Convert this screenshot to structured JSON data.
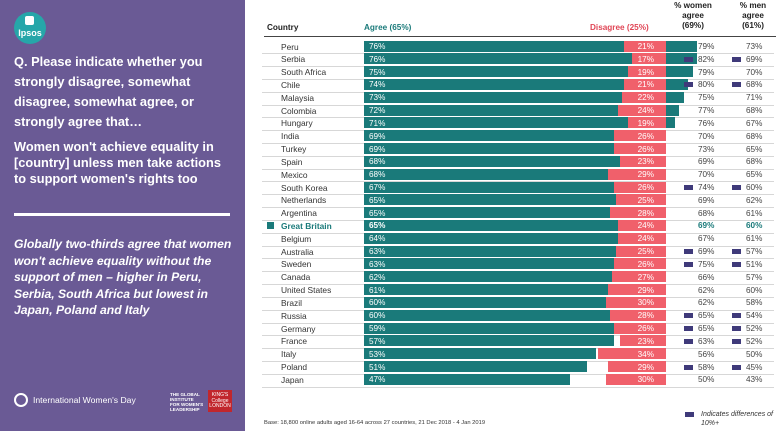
{
  "brand": {
    "logo": "Ipsos"
  },
  "question": "Q. Please indicate whether you strongly disagree, somewhat disagree, somewhat agree, or strongly agree that…",
  "statement": "Women won't achieve equality in [country] unless men take actions to support women's rights too",
  "summary": "Globally two-thirds agree that women won't achieve equality without the support of men – higher in Peru, Serbia, South Africa but lowest in Japan, Poland and Italy",
  "footer": {
    "iwd": "International Women's Day",
    "gi": "THE GLOBAL INSTITUTE FOR WOMEN'S LEADERSHIP",
    "kings": "KING'S College LONDON",
    "base": "Base: 18,800 online adults aged 16-64 across 27 countries,  21 Dec 2018 - 4 Jan  2019",
    "legend": "Indicates differences of 10%+"
  },
  "colors": {
    "agree": "#1a7a7a",
    "disagree": "#f0606b",
    "panel": "#6a5a95",
    "marker": "#3f3a7a"
  },
  "chart_data": {
    "type": "bar",
    "columns": {
      "country": "Country",
      "agree": "Agree (65%)",
      "disagree": "Disagree  (25%)",
      "women_line1": "% women",
      "women_line2": "agree",
      "women_line3": "(69%)",
      "men_line1": "% men",
      "men_line2": "agree",
      "men_line3": "(61%)"
    },
    "highlight": "Great Britain",
    "rows": [
      {
        "country": "Peru",
        "agree": 76,
        "disagree": 21,
        "women": "79%",
        "men": "73%",
        "mw": false,
        "mm": false
      },
      {
        "country": "Serbia",
        "agree": 76,
        "disagree": 17,
        "women": "82%",
        "men": "69%",
        "mw": true,
        "mm": true
      },
      {
        "country": "South Africa",
        "agree": 75,
        "disagree": 19,
        "women": "79%",
        "men": "70%",
        "mw": false,
        "mm": false
      },
      {
        "country": "Chile",
        "agree": 74,
        "disagree": 21,
        "women": "80%",
        "men": "68%",
        "mw": true,
        "mm": true
      },
      {
        "country": "Malaysia",
        "agree": 73,
        "disagree": 22,
        "women": "75%",
        "men": "71%",
        "mw": false,
        "mm": false
      },
      {
        "country": "Colombia",
        "agree": 72,
        "disagree": 24,
        "women": "77%",
        "men": "68%",
        "mw": false,
        "mm": false
      },
      {
        "country": "Hungary",
        "agree": 71,
        "disagree": 19,
        "women": "76%",
        "men": "67%",
        "mw": false,
        "mm": false
      },
      {
        "country": "India",
        "agree": 69,
        "disagree": 26,
        "women": "70%",
        "men": "68%",
        "mw": false,
        "mm": false
      },
      {
        "country": "Turkey",
        "agree": 69,
        "disagree": 26,
        "women": "73%",
        "men": "65%",
        "mw": false,
        "mm": false
      },
      {
        "country": "Spain",
        "agree": 68,
        "disagree": 23,
        "women": "69%",
        "men": "68%",
        "mw": false,
        "mm": false
      },
      {
        "country": "Mexico",
        "agree": 68,
        "disagree": 29,
        "women": "70%",
        "men": "65%",
        "mw": false,
        "mm": false
      },
      {
        "country": "South Korea",
        "agree": 67,
        "disagree": 26,
        "women": "74%",
        "men": "60%",
        "mw": true,
        "mm": true
      },
      {
        "country": "Netherlands",
        "agree": 65,
        "disagree": 25,
        "women": "69%",
        "men": "62%",
        "mw": false,
        "mm": false
      },
      {
        "country": "Argentina",
        "agree": 65,
        "disagree": 28,
        "women": "68%",
        "men": "61%",
        "mw": false,
        "mm": false
      },
      {
        "country": "Great Britain",
        "agree": 65,
        "disagree": 24,
        "women": "69%",
        "men": "60%",
        "mw": false,
        "mm": false
      },
      {
        "country": "Belgium",
        "agree": 64,
        "disagree": 24,
        "women": "67%",
        "men": "61%",
        "mw": false,
        "mm": false
      },
      {
        "country": "Australia",
        "agree": 63,
        "disagree": 25,
        "women": "69%",
        "men": "57%",
        "mw": true,
        "mm": true
      },
      {
        "country": "Sweden",
        "agree": 63,
        "disagree": 26,
        "women": "75%",
        "men": "51%",
        "mw": true,
        "mm": true
      },
      {
        "country": "Canada",
        "agree": 62,
        "disagree": 27,
        "women": "66%",
        "men": "57%",
        "mw": false,
        "mm": false
      },
      {
        "country": "United States",
        "agree": 61,
        "disagree": 29,
        "women": "62%",
        "men": "60%",
        "mw": false,
        "mm": false
      },
      {
        "country": "Brazil",
        "agree": 60,
        "disagree": 30,
        "women": "62%",
        "men": "58%",
        "mw": false,
        "mm": false
      },
      {
        "country": "Russia",
        "agree": 60,
        "disagree": 28,
        "women": "65%",
        "men": "54%",
        "mw": true,
        "mm": true
      },
      {
        "country": "Germany",
        "agree": 59,
        "disagree": 26,
        "women": "65%",
        "men": "52%",
        "mw": true,
        "mm": true
      },
      {
        "country": "France",
        "agree": 57,
        "disagree": 23,
        "women": "63%",
        "men": "52%",
        "mw": true,
        "mm": true
      },
      {
        "country": "Italy",
        "agree": 53,
        "disagree": 34,
        "women": "56%",
        "men": "50%",
        "mw": false,
        "mm": false
      },
      {
        "country": "Poland",
        "agree": 51,
        "disagree": 29,
        "women": "58%",
        "men": "45%",
        "mw": true,
        "mm": true
      },
      {
        "country": "Japan",
        "agree": 47,
        "disagree": 30,
        "women": "50%",
        "men": "43%",
        "mw": false,
        "mm": false
      }
    ]
  }
}
